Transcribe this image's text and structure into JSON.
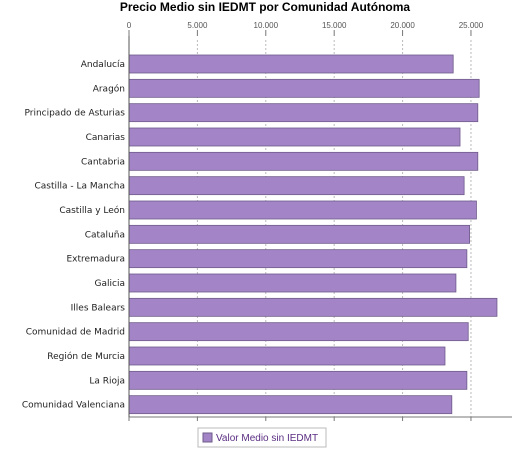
{
  "chart_data": {
    "type": "bar",
    "orientation": "horizontal",
    "title": "Precio Medio sin IEDMT por Comunidad Autónoma",
    "xlabel": "",
    "ylabel": "",
    "xlim": [
      0,
      28000
    ],
    "xticks": [
      0,
      5000,
      10000,
      15000,
      20000,
      25000
    ],
    "xtick_labels": [
      "0",
      "5.000",
      "10.000",
      "15.000",
      "20.000",
      "25.000"
    ],
    "grid": true,
    "legend_position": "bottom",
    "categories": [
      "Andalucía",
      "Aragón",
      "Principado de Asturias",
      "Canarias",
      "Cantabria",
      "Castilla - La Mancha",
      "Castilla y León",
      "Cataluña",
      "Extremadura",
      "Galicia",
      "Illes Balears",
      "Comunidad de Madrid",
      "Región de Murcia",
      "La Rioja",
      "Comunidad Valenciana"
    ],
    "series": [
      {
        "name": "Valor Medio sin IEDMT",
        "color": "#a385c7",
        "values": [
          23700,
          25600,
          25500,
          24200,
          25500,
          24500,
          25400,
          24900,
          24700,
          23900,
          26900,
          24800,
          23100,
          24700,
          23600
        ]
      }
    ]
  }
}
